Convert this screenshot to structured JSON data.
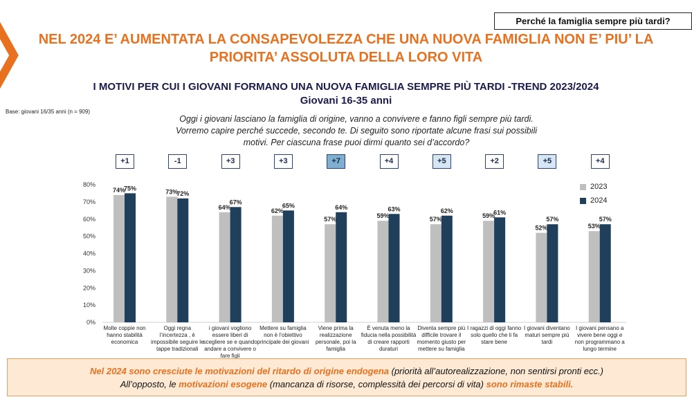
{
  "tag": "Perché la famiglia sempre più tardi?",
  "headline": "NEL 2024 E’ AUMENTATA LA CONSAPEVOLEZZA CHE UNA NUOVA FAMIGLIA NON E’ PIU’ LA PRIORITA’ ASSOLUTA DELLA LORO VITA",
  "chart_title": "I MOTIVI PER CUI I GIOVANI FORMANO UNA NUOVA FAMIGLIA SEMPRE PIÙ TARDI -TREND 2023/2024",
  "chart_subtitle": "Giovani 16-35 anni",
  "base": "Base: giovani 16/35 anni (n = 909)",
  "question": "Oggi i giovani lasciano la famiglia di origine, vanno a convivere e fanno figli sempre più tardi. Vorremo capire perché succede, secondo te. Di seguito sono riportate alcune frasi sui possibili motivi. Per ciascuna frase puoi dirmi quanto sei d’accordo?",
  "deltas": [
    {
      "label": "+1",
      "fill": "#ffffff"
    },
    {
      "label": "-1",
      "fill": "#ffffff"
    },
    {
      "label": "+3",
      "fill": "#ffffff"
    },
    {
      "label": "+3",
      "fill": "#ffffff"
    },
    {
      "label": "+7",
      "fill": "#7fb0cf"
    },
    {
      "label": "+4",
      "fill": "#ffffff"
    },
    {
      "label": "+5",
      "fill": "#d6e6f2"
    },
    {
      "label": "+2",
      "fill": "#ffffff"
    },
    {
      "label": "+5",
      "fill": "#d6e6f2"
    },
    {
      "label": "+4",
      "fill": "#ffffff"
    }
  ],
  "chart_data": {
    "type": "bar",
    "categories": [
      "Molte coppie non hanno stabilità economica",
      "Oggi regna l’incertezza , è impossibile seguire le tappe tradizionali",
      "i giovani vogliono essere liberi di scegliere se e quando andare a convivere o fare figli",
      "Mettere su famiglia non è l’obiettivo principale dei giovani",
      "Viene prima la realizzazione personale, poi la famiglia",
      "È venuta meno la fiducia nella possibilità di creare rapporti duraturi",
      "Diventa sempre più difficile trovare il momento giusto per mettere su famiglia",
      "I ragazzi di oggi fanno solo quello che li fa stare bene",
      "I giovani diventano maturi sempre più tardi",
      "I giovani pensano a vivere bene oggi e non programmano a lungo termine"
    ],
    "series": [
      {
        "name": "2023",
        "color": "#bfbfbf",
        "values": [
          74,
          73,
          64,
          62,
          57,
          59,
          57,
          59,
          52,
          53
        ]
      },
      {
        "name": "2024",
        "color": "#1f3f5a",
        "values": [
          75,
          72,
          67,
          65,
          64,
          63,
          62,
          61,
          57,
          57
        ]
      }
    ],
    "ylim": [
      0,
      80
    ],
    "yticks": [
      "0%",
      "10%",
      "20%",
      "30%",
      "40%",
      "50%",
      "60%",
      "70%",
      "80%"
    ],
    "grid": false,
    "legend": "right"
  },
  "note": {
    "l1a": "Nel 2024  sono cresciute le motivazioni del ritardo di origine endogena",
    "l1b": " (priorità all’autorealizzazione, non sentirsi pronti ecc.)",
    "l2a": "All’opposto, le ",
    "l2b": "motivazioni esogene",
    "l2c": " (mancanza di risorse, complessità dei percorsi di vita) ",
    "l2d": "sono rimaste stabili."
  }
}
